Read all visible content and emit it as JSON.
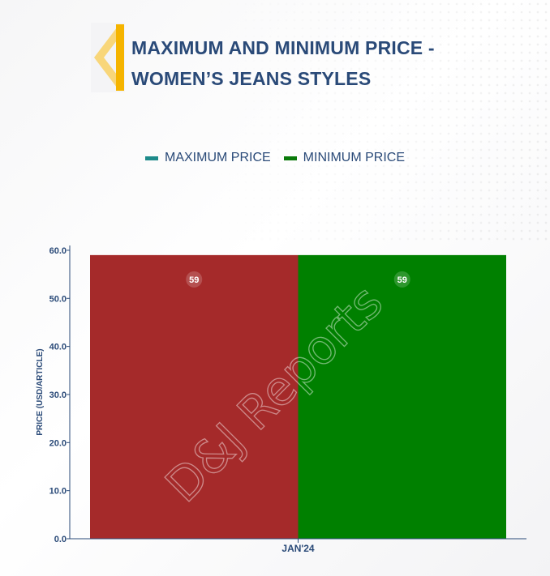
{
  "header": {
    "title_line1": "MAXIMUM AND MINIMUM PRICE -",
    "title_line2": "WOMEN’S JEANS STYLES"
  },
  "colors": {
    "title": "#2a4a78",
    "logo_yellow": "#f5b400",
    "logo_light": "#f8d67a",
    "axis": "#2a4a78"
  },
  "legend": [
    {
      "label": "MAXIMUM PRICE",
      "color": "#1d8a8a"
    },
    {
      "label": "MINIMUM PRICE",
      "color": "#0a7a0a"
    }
  ],
  "watermark": "D&J Reports",
  "chart_data": {
    "type": "bar",
    "categories": [
      "JAN'24"
    ],
    "series": [
      {
        "name": "MAXIMUM PRICE",
        "values": [
          59
        ],
        "color": "#a52a2a"
      },
      {
        "name": "MINIMUM PRICE",
        "values": [
          59
        ],
        "color": "#008000"
      }
    ],
    "ylabel": "PRICE (USD/ARTICLE)",
    "ylim": [
      0,
      61
    ],
    "yticks": [
      0,
      10,
      20,
      30,
      40,
      50,
      60
    ],
    "ytick_labels": [
      "0.0",
      "10.0",
      "20.0",
      "30.0",
      "40.0",
      "50.0",
      "60.0"
    ],
    "data_labels": [
      "59",
      "59"
    ],
    "legend_position": "top-center",
    "grid": false
  }
}
